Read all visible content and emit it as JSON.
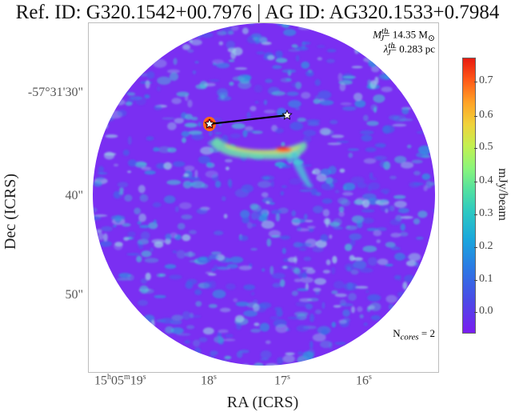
{
  "title": "Ref. ID: G320.1542+00.7976 | AG ID: AG320.1533+0.7984",
  "annotations": {
    "mass": {
      "sym": "M",
      "sub": "J",
      "sup": "th",
      "value": "= 14.35 M",
      "unit_sym": "⊙"
    },
    "length": {
      "sym": "λ",
      "sub": "J",
      "sup": "th",
      "value": "= 0.283 pc"
    },
    "ncores": {
      "prefix": "N",
      "sub": "cores",
      "value": " = 2"
    }
  },
  "y_axis": {
    "title": "Dec (ICRS)",
    "ticks": [
      "-57°31'30\"",
      "40\"",
      "50\""
    ]
  },
  "x_axis": {
    "title": "RA (ICRS)",
    "ticks": [
      {
        "h": "15",
        "m": "05",
        "s": "19",
        "label": "15h05m19s"
      },
      {
        "s": "18",
        "label": "18s"
      },
      {
        "s": "17",
        "label": "17s"
      },
      {
        "s": "16",
        "label": "16s"
      }
    ]
  },
  "colorbar": {
    "label": "mJy/beam",
    "ticks": [
      "0.7",
      "0.6",
      "0.5",
      "0.4",
      "0.3",
      "0.2",
      "0.1",
      "0.0"
    ],
    "colors": {
      "low": "#7a1cf0",
      "mid": "#52e0a0",
      "high": "#e81a10"
    }
  },
  "markers": {
    "cores": [
      {
        "name": "core-1",
        "color": "#ffffff"
      },
      {
        "name": "core-2",
        "color": "#ffffff"
      }
    ],
    "link_color": "#000000"
  },
  "map_colors": {
    "background": "#7a2ff2",
    "noise": [
      "#3e6ae8",
      "#2a9ee0",
      "#49c8d6",
      "#9ad7e6"
    ],
    "filament": [
      "#6ce8a8",
      "#e6e34a",
      "#ff4a18"
    ]
  }
}
